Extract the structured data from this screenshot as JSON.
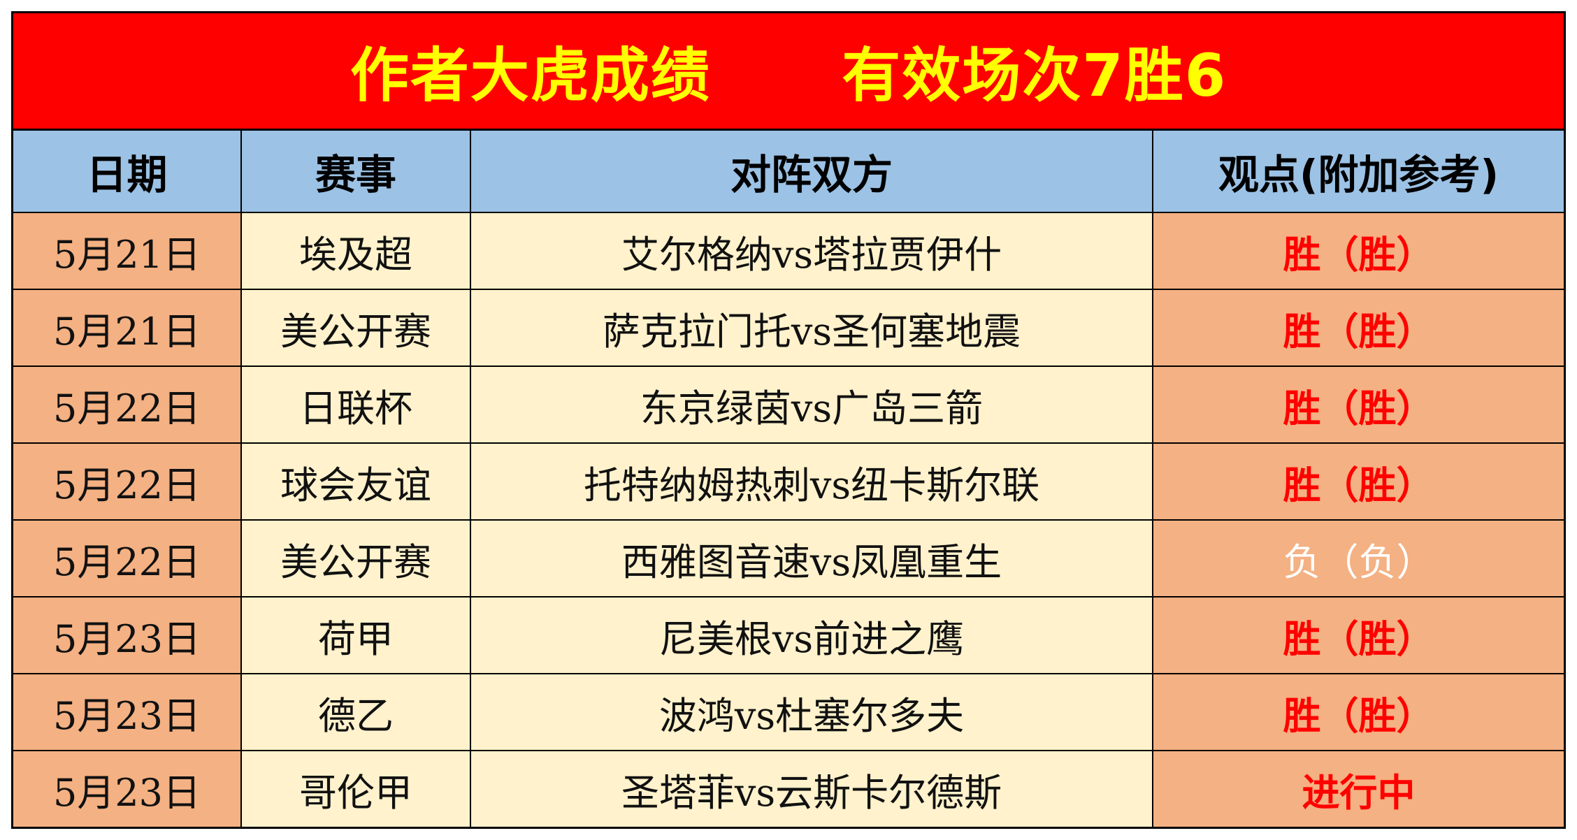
{
  "title": "作者大虎成绩      有效场次7胜6",
  "headers": {
    "date": "日期",
    "league": "赛事",
    "match": "对阵双方",
    "result": "观点(附加参考)"
  },
  "rows": [
    {
      "date": "5月21日",
      "league": "埃及超",
      "match": "艾尔格纳vs塔拉贾伊什",
      "result": "胜（胜）",
      "status": "win"
    },
    {
      "date": "5月21日",
      "league": "美公开赛",
      "match": "萨克拉门托vs圣何塞地震",
      "result": "胜（胜）",
      "status": "win"
    },
    {
      "date": "5月22日",
      "league": "日联杯",
      "match": "东京绿茵vs广岛三箭",
      "result": "胜（胜）",
      "status": "win"
    },
    {
      "date": "5月22日",
      "league": "球会友谊",
      "match": "托特纳姆热刺vs纽卡斯尔联",
      "result": "胜（胜）",
      "status": "win"
    },
    {
      "date": "5月22日",
      "league": "美公开赛",
      "match": "西雅图音速vs凤凰重生",
      "result": "负（负）",
      "status": "loss"
    },
    {
      "date": "5月23日",
      "league": "荷甲",
      "match": "尼美根vs前进之鹰",
      "result": "胜（胜）",
      "status": "win"
    },
    {
      "date": "5月23日",
      "league": "德乙",
      "match": "波鸿vs杜塞尔多夫",
      "result": "胜（胜）",
      "status": "win"
    },
    {
      "date": "5月23日",
      "league": "哥伦甲",
      "match": "圣塔菲vs云斯卡尔德斯",
      "result": "进行中",
      "status": "live"
    }
  ],
  "colors": {
    "title_bg": "#fe0000",
    "title_text": "#ffff00",
    "header_bg": "#9cc2e5",
    "date_bg": "#f4b183",
    "match_bg": "#fff2cc",
    "result_bg": "#f4b183",
    "win_text": "#ff0000",
    "loss_text": "#ffffff"
  }
}
